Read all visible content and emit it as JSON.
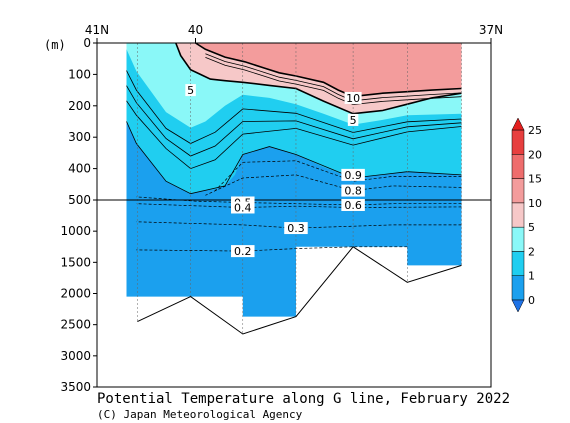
{
  "chart_data": {
    "type": "contour",
    "title": "Potential Temperature along G line, February 2022",
    "credit": "(C) Japan Meteorological Agency",
    "ylabel": "(m)",
    "top_axis_labels": [
      {
        "lat": 41,
        "label": "41N"
      },
      {
        "lat": 40,
        "label": "40"
      },
      {
        "lat": 37,
        "label": "37N"
      }
    ],
    "xlim_lat": [
      41,
      37
    ],
    "upper_panel": {
      "depth_range": [
        0,
        500
      ],
      "ticks": [
        {
          "depth": 0,
          "label": "0"
        },
        {
          "depth": 100,
          "label": "100"
        },
        {
          "depth": 200,
          "label": "200"
        },
        {
          "depth": 300,
          "label": "300"
        },
        {
          "depth": 400,
          "label": "400"
        },
        {
          "depth": 500,
          "label": "500"
        }
      ]
    },
    "lower_panel": {
      "depth_range": [
        500,
        3500
      ],
      "ticks": [
        {
          "depth": 1000,
          "label": "1000"
        },
        {
          "depth": 1500,
          "label": "1500"
        },
        {
          "depth": 2000,
          "label": "2000"
        },
        {
          "depth": 2500,
          "label": "2500"
        },
        {
          "depth": 3000,
          "label": "3000"
        },
        {
          "depth": 3500,
          "label": "3500"
        }
      ]
    },
    "stations_lat": [
      40.59,
      40.05,
      39.52,
      38.98,
      38.4,
      37.85,
      37.3
    ],
    "bottom_depth_m": [
      2450,
      2050,
      2650,
      2370,
      1250,
      1820,
      1550
    ],
    "contour_labels": [
      {
        "text": "5",
        "lat": 40.05,
        "depth": 150
      },
      {
        "text": "10",
        "lat": 38.4,
        "depth": 175
      },
      {
        "text": "5",
        "lat": 38.4,
        "depth": 245
      },
      {
        "text": "0.9",
        "lat": 38.4,
        "depth": 420
      },
      {
        "text": "0.8",
        "lat": 38.4,
        "depth": 470
      },
      {
        "text": "0.5",
        "lat": 39.52,
        "depth": 540
      },
      {
        "text": "0.4",
        "lat": 39.52,
        "depth": 620
      },
      {
        "text": "0.6",
        "lat": 38.4,
        "depth": 580
      },
      {
        "text": "0.3",
        "lat": 38.98,
        "depth": 950
      },
      {
        "text": "0.2",
        "lat": 39.52,
        "depth": 1320
      }
    ],
    "colorbar": {
      "levels": [
        0,
        1,
        2,
        5,
        10,
        15,
        20,
        25
      ],
      "tick_labels": [
        "0",
        "1",
        "2",
        "5",
        "10",
        "15",
        "20",
        "25"
      ],
      "colors": [
        "#1ba0ee",
        "#20cef0",
        "#8af8f8",
        "#f6c8c8",
        "#f39c9c",
        "#ee6d6d",
        "#e73f3f"
      ],
      "min_cap_color": "#1f73e6",
      "max_cap_color": "#e3201f"
    }
  }
}
